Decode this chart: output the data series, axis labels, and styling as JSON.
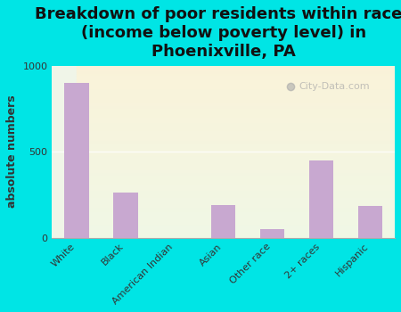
{
  "title": "Breakdown of poor residents within races\n(income below poverty level) in\nPhoenixville, PA",
  "ylabel": "absolute numbers",
  "categories": [
    "White",
    "Black",
    "American Indian",
    "Asian",
    "Other race",
    "2+ races",
    "Hispanic"
  ],
  "values": [
    900,
    260,
    0,
    190,
    50,
    450,
    185
  ],
  "bar_color": "#c8a8d0",
  "background_color": "#00e5e5",
  "plot_bg_top": "#f0f5e8",
  "plot_bg_bottom": "#e8f5e8",
  "ylim": [
    0,
    1000
  ],
  "yticks": [
    0,
    500,
    1000
  ],
  "title_fontsize": 13,
  "label_fontsize": 9,
  "tick_fontsize": 8,
  "watermark": "City-Data.com"
}
